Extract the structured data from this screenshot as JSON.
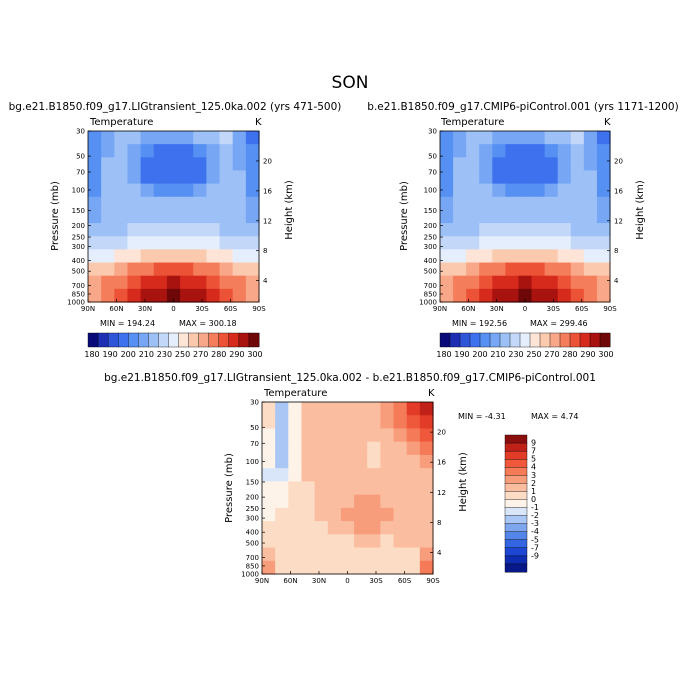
{
  "page": {
    "title": "SON"
  },
  "chart_data": [
    {
      "type": "heatmap",
      "id": "p1",
      "title": "bg.e21.B1850.f09_g17.LIGtransient_125.0ka.002 (yrs 471-500)",
      "variable": "Temperature",
      "units": "K",
      "xlabel": "",
      "ylabel": "Pressure (mb)",
      "ylabel_right": "Height (km)",
      "x_ticks": [
        "90N",
        "60N",
        "30N",
        "0",
        "30S",
        "60S",
        "90S"
      ],
      "y_ticks": [
        "30",
        "50",
        "70",
        "100",
        "150",
        "200",
        "250",
        "300",
        "400",
        "500",
        "700",
        "850",
        "1000"
      ],
      "y_right_ticks": [
        "20",
        "16",
        "12",
        "8",
        "4"
      ],
      "min_label": "MIN = 194.24",
      "max_label": "MAX = 300.18",
      "colorbar_labels": [
        "180",
        "190",
        "200",
        "210",
        "230",
        "250",
        "270",
        "280",
        "290",
        "300"
      ],
      "colorbar_colors": [
        "#0a0a78",
        "#1e2fb4",
        "#2f55d8",
        "#3e71ee",
        "#5690f2",
        "#76a6f4",
        "#9dc0f6",
        "#c3d7f9",
        "#e4eefd",
        "#fde4d6",
        "#fbc9ae",
        "#f8a888",
        "#f47d5b",
        "#ec5336",
        "#d62a1d",
        "#a8120f",
        "#6e0808"
      ],
      "x": [
        90,
        75,
        60,
        45,
        30,
        15,
        0,
        -15,
        -30,
        -45,
        -60,
        -75,
        -90
      ],
      "y": [
        30,
        50,
        70,
        100,
        150,
        200,
        250,
        300,
        400,
        500,
        700,
        850,
        1000
      ],
      "z": [
        [
          4,
          5,
          6,
          6,
          5,
          5,
          5,
          5,
          6,
          6,
          7,
          5,
          3
        ],
        [
          4,
          5,
          6,
          5,
          4,
          3,
          3,
          3,
          4,
          5,
          6,
          5,
          4
        ],
        [
          4,
          6,
          6,
          5,
          3,
          3,
          3,
          3,
          3,
          5,
          6,
          5,
          4
        ],
        [
          4,
          6,
          6,
          5,
          3,
          3,
          3,
          3,
          3,
          5,
          6,
          6,
          4
        ],
        [
          4,
          6,
          6,
          6,
          5,
          4,
          4,
          4,
          5,
          6,
          6,
          6,
          4
        ],
        [
          5,
          6,
          6,
          6,
          6,
          6,
          6,
          6,
          6,
          6,
          6,
          6,
          5
        ],
        [
          5,
          6,
          6,
          6,
          6,
          6,
          6,
          6,
          6,
          6,
          6,
          6,
          5
        ],
        [
          6,
          6,
          6,
          7,
          7,
          7,
          7,
          7,
          7,
          7,
          6,
          6,
          6
        ],
        [
          7,
          7,
          7,
          8,
          8,
          8,
          8,
          8,
          8,
          8,
          7,
          7,
          7
        ],
        [
          8,
          8,
          9,
          9,
          10,
          10,
          10,
          10,
          10,
          9,
          9,
          8,
          8
        ],
        [
          10,
          10,
          11,
          12,
          12,
          13,
          13,
          13,
          12,
          12,
          11,
          10,
          10
        ],
        [
          11,
          12,
          12,
          13,
          14,
          14,
          15,
          14,
          14,
          13,
          12,
          12,
          11
        ],
        [
          11,
          12,
          13,
          14,
          15,
          15,
          16,
          15,
          15,
          14,
          13,
          12,
          11
        ]
      ]
    },
    {
      "type": "heatmap",
      "id": "p2",
      "title": "b.e21.B1850.f09_g17.CMIP6-piControl.001 (yrs 1171-1200)",
      "variable": "Temperature",
      "units": "K",
      "xlabel": "",
      "ylabel": "Pressure (mb)",
      "ylabel_right": "Height (km)",
      "x_ticks": [
        "90N",
        "60N",
        "30N",
        "0",
        "30S",
        "60S",
        "90S"
      ],
      "y_ticks": [
        "30",
        "50",
        "70",
        "100",
        "150",
        "200",
        "250",
        "300",
        "400",
        "500",
        "700",
        "850",
        "1000"
      ],
      "y_right_ticks": [
        "20",
        "16",
        "12",
        "8",
        "4"
      ],
      "min_label": "MIN = 192.56",
      "max_label": "MAX = 299.46",
      "colorbar_labels": [
        "180",
        "190",
        "200",
        "210",
        "230",
        "250",
        "270",
        "280",
        "290",
        "300"
      ],
      "colorbar_colors": [
        "#0a0a78",
        "#1e2fb4",
        "#2f55d8",
        "#3e71ee",
        "#5690f2",
        "#76a6f4",
        "#9dc0f6",
        "#c3d7f9",
        "#e4eefd",
        "#fde4d6",
        "#fbc9ae",
        "#f8a888",
        "#f47d5b",
        "#ec5336",
        "#d62a1d",
        "#a8120f",
        "#6e0808"
      ],
      "x": [
        90,
        75,
        60,
        45,
        30,
        15,
        0,
        -15,
        -30,
        -45,
        -60,
        -75,
        -90
      ],
      "y": [
        30,
        50,
        70,
        100,
        150,
        200,
        250,
        300,
        400,
        500,
        700,
        850,
        1000
      ],
      "z": [
        [
          4,
          5,
          6,
          6,
          5,
          5,
          5,
          5,
          6,
          6,
          7,
          5,
          3
        ],
        [
          4,
          5,
          6,
          5,
          4,
          3,
          3,
          3,
          4,
          5,
          6,
          5,
          4
        ],
        [
          4,
          6,
          6,
          5,
          3,
          3,
          3,
          3,
          3,
          5,
          6,
          5,
          4
        ],
        [
          4,
          6,
          6,
          5,
          3,
          3,
          3,
          3,
          3,
          5,
          6,
          6,
          4
        ],
        [
          4,
          6,
          6,
          6,
          5,
          4,
          4,
          4,
          5,
          6,
          6,
          6,
          4
        ],
        [
          5,
          6,
          6,
          6,
          6,
          6,
          6,
          6,
          6,
          6,
          6,
          6,
          5
        ],
        [
          5,
          6,
          6,
          6,
          6,
          6,
          6,
          6,
          6,
          6,
          6,
          6,
          5
        ],
        [
          6,
          6,
          6,
          7,
          7,
          7,
          7,
          7,
          7,
          7,
          6,
          6,
          6
        ],
        [
          7,
          7,
          7,
          8,
          8,
          8,
          8,
          8,
          8,
          8,
          7,
          7,
          7
        ],
        [
          8,
          8,
          9,
          9,
          10,
          10,
          10,
          10,
          10,
          9,
          9,
          8,
          8
        ],
        [
          10,
          10,
          11,
          12,
          12,
          13,
          13,
          13,
          12,
          12,
          11,
          10,
          10
        ],
        [
          11,
          12,
          12,
          13,
          14,
          14,
          15,
          14,
          14,
          13,
          12,
          12,
          11
        ],
        [
          11,
          12,
          13,
          14,
          15,
          15,
          16,
          15,
          15,
          14,
          13,
          12,
          11
        ]
      ]
    },
    {
      "type": "heatmap",
      "id": "p3",
      "title": "bg.e21.B1850.f09_g17.LIGtransient_125.0ka.002 - b.e21.B1850.f09_g17.CMIP6-piControl.001",
      "variable": "Temperature",
      "units": "K",
      "xlabel": "",
      "ylabel": "Pressure (mb)",
      "ylabel_right": "Height (km)",
      "x_ticks": [
        "90N",
        "60N",
        "30N",
        "0",
        "30S",
        "60S",
        "90S"
      ],
      "y_ticks": [
        "30",
        "50",
        "70",
        "100",
        "150",
        "200",
        "250",
        "300",
        "400",
        "500",
        "700",
        "850",
        "1000"
      ],
      "y_right_ticks": [
        "20",
        "16",
        "12",
        "8",
        "4"
      ],
      "min_label": "MIN = -4.31",
      "max_label": "MAX = 4.74",
      "colorbar_labels": [
        "9",
        "7",
        "5",
        "4",
        "3",
        "2",
        "1",
        "0",
        "-1",
        "-2",
        "-3",
        "-4",
        "-5",
        "-7",
        "-9"
      ],
      "colorbar_colors": [
        "#8c0f0f",
        "#c0221a",
        "#e23b28",
        "#f0583b",
        "#f57a57",
        "#f89d7c",
        "#fbbda0",
        "#fddcc6",
        "#fdf3e8",
        "#d9e6fa",
        "#aac6f4",
        "#7ea6ee",
        "#5486ea",
        "#3466e4",
        "#1d47d2",
        "#0e2cb0",
        "#081888"
      ],
      "x": [
        90,
        75,
        60,
        45,
        30,
        15,
        0,
        -15,
        -30,
        -45,
        -60,
        -75,
        -90
      ],
      "y": [
        30,
        50,
        70,
        100,
        150,
        200,
        250,
        300,
        400,
        500,
        700,
        850,
        1000
      ],
      "z": [
        [
          7,
          10,
          8,
          6,
          6,
          6,
          6,
          6,
          6,
          5,
          4,
          2,
          1
        ],
        [
          7,
          10,
          8,
          6,
          6,
          6,
          6,
          6,
          6,
          5,
          4,
          3,
          2
        ],
        [
          8,
          10,
          8,
          6,
          6,
          6,
          6,
          6,
          6,
          6,
          5,
          4,
          3
        ],
        [
          8,
          10,
          8,
          6,
          6,
          6,
          6,
          6,
          7,
          6,
          6,
          5,
          4
        ],
        [
          8,
          10,
          8,
          6,
          6,
          6,
          6,
          6,
          7,
          6,
          6,
          6,
          5
        ],
        [
          9,
          9,
          8,
          6,
          6,
          6,
          6,
          6,
          6,
          6,
          6,
          6,
          6
        ],
        [
          8,
          8,
          7,
          7,
          6,
          6,
          6,
          6,
          6,
          6,
          6,
          6,
          6
        ],
        [
          8,
          8,
          7,
          7,
          6,
          6,
          6,
          5,
          5,
          6,
          6,
          6,
          6
        ],
        [
          8,
          7,
          7,
          7,
          6,
          6,
          5,
          5,
          5,
          5,
          6,
          6,
          6
        ],
        [
          7,
          7,
          7,
          7,
          7,
          6,
          6,
          5,
          5,
          6,
          6,
          6,
          6
        ],
        [
          7,
          7,
          7,
          7,
          7,
          7,
          7,
          6,
          6,
          7,
          6,
          6,
          6
        ],
        [
          6,
          7,
          7,
          7,
          7,
          7,
          7,
          7,
          7,
          7,
          7,
          7,
          5
        ],
        [
          5,
          7,
          7,
          7,
          7,
          7,
          7,
          7,
          7,
          7,
          7,
          7,
          4
        ]
      ]
    }
  ]
}
